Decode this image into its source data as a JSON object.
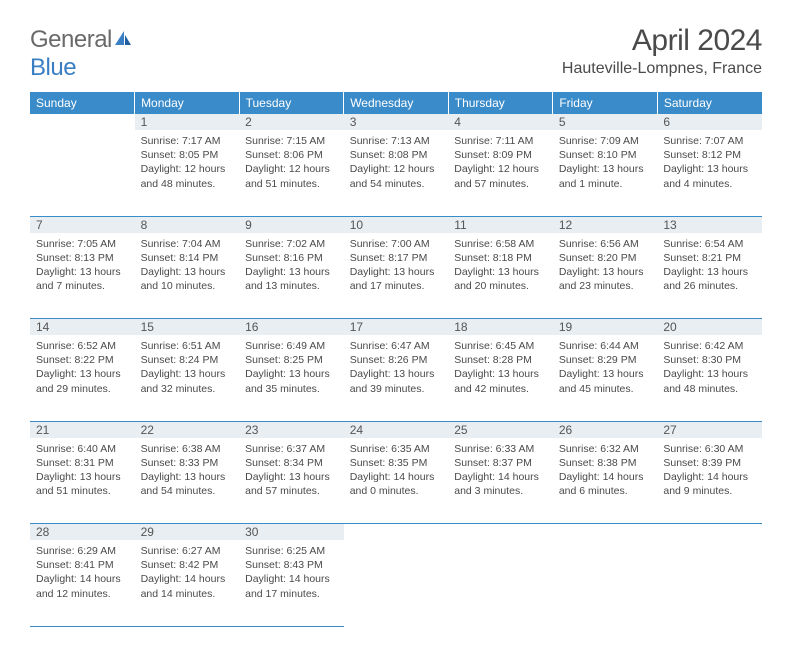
{
  "brand": {
    "word1": "General",
    "word2": "Blue"
  },
  "title": "April 2024",
  "location": "Hauteville-Lompnes, France",
  "day_headers": [
    "Sunday",
    "Monday",
    "Tuesday",
    "Wednesday",
    "Thursday",
    "Friday",
    "Saturday"
  ],
  "colors": {
    "header_bg": "#3a8bc9",
    "header_text": "#ffffff",
    "daynum_bg": "#e9eef2",
    "grid_line": "#3a8bc9",
    "body_text": "#4a4a4a",
    "logo_gray": "#6a6a6a",
    "logo_blue": "#3a7fc4"
  },
  "weeks": [
    {
      "days": [
        {
          "num": "",
          "sunrise": "",
          "sunset": "",
          "daylight": ""
        },
        {
          "num": "1",
          "sunrise": "Sunrise: 7:17 AM",
          "sunset": "Sunset: 8:05 PM",
          "daylight": "Daylight: 12 hours and 48 minutes."
        },
        {
          "num": "2",
          "sunrise": "Sunrise: 7:15 AM",
          "sunset": "Sunset: 8:06 PM",
          "daylight": "Daylight: 12 hours and 51 minutes."
        },
        {
          "num": "3",
          "sunrise": "Sunrise: 7:13 AM",
          "sunset": "Sunset: 8:08 PM",
          "daylight": "Daylight: 12 hours and 54 minutes."
        },
        {
          "num": "4",
          "sunrise": "Sunrise: 7:11 AM",
          "sunset": "Sunset: 8:09 PM",
          "daylight": "Daylight: 12 hours and 57 minutes."
        },
        {
          "num": "5",
          "sunrise": "Sunrise: 7:09 AM",
          "sunset": "Sunset: 8:10 PM",
          "daylight": "Daylight: 13 hours and 1 minute."
        },
        {
          "num": "6",
          "sunrise": "Sunrise: 7:07 AM",
          "sunset": "Sunset: 8:12 PM",
          "daylight": "Daylight: 13 hours and 4 minutes."
        }
      ]
    },
    {
      "days": [
        {
          "num": "7",
          "sunrise": "Sunrise: 7:05 AM",
          "sunset": "Sunset: 8:13 PM",
          "daylight": "Daylight: 13 hours and 7 minutes."
        },
        {
          "num": "8",
          "sunrise": "Sunrise: 7:04 AM",
          "sunset": "Sunset: 8:14 PM",
          "daylight": "Daylight: 13 hours and 10 minutes."
        },
        {
          "num": "9",
          "sunrise": "Sunrise: 7:02 AM",
          "sunset": "Sunset: 8:16 PM",
          "daylight": "Daylight: 13 hours and 13 minutes."
        },
        {
          "num": "10",
          "sunrise": "Sunrise: 7:00 AM",
          "sunset": "Sunset: 8:17 PM",
          "daylight": "Daylight: 13 hours and 17 minutes."
        },
        {
          "num": "11",
          "sunrise": "Sunrise: 6:58 AM",
          "sunset": "Sunset: 8:18 PM",
          "daylight": "Daylight: 13 hours and 20 minutes."
        },
        {
          "num": "12",
          "sunrise": "Sunrise: 6:56 AM",
          "sunset": "Sunset: 8:20 PM",
          "daylight": "Daylight: 13 hours and 23 minutes."
        },
        {
          "num": "13",
          "sunrise": "Sunrise: 6:54 AM",
          "sunset": "Sunset: 8:21 PM",
          "daylight": "Daylight: 13 hours and 26 minutes."
        }
      ]
    },
    {
      "days": [
        {
          "num": "14",
          "sunrise": "Sunrise: 6:52 AM",
          "sunset": "Sunset: 8:22 PM",
          "daylight": "Daylight: 13 hours and 29 minutes."
        },
        {
          "num": "15",
          "sunrise": "Sunrise: 6:51 AM",
          "sunset": "Sunset: 8:24 PM",
          "daylight": "Daylight: 13 hours and 32 minutes."
        },
        {
          "num": "16",
          "sunrise": "Sunrise: 6:49 AM",
          "sunset": "Sunset: 8:25 PM",
          "daylight": "Daylight: 13 hours and 35 minutes."
        },
        {
          "num": "17",
          "sunrise": "Sunrise: 6:47 AM",
          "sunset": "Sunset: 8:26 PM",
          "daylight": "Daylight: 13 hours and 39 minutes."
        },
        {
          "num": "18",
          "sunrise": "Sunrise: 6:45 AM",
          "sunset": "Sunset: 8:28 PM",
          "daylight": "Daylight: 13 hours and 42 minutes."
        },
        {
          "num": "19",
          "sunrise": "Sunrise: 6:44 AM",
          "sunset": "Sunset: 8:29 PM",
          "daylight": "Daylight: 13 hours and 45 minutes."
        },
        {
          "num": "20",
          "sunrise": "Sunrise: 6:42 AM",
          "sunset": "Sunset: 8:30 PM",
          "daylight": "Daylight: 13 hours and 48 minutes."
        }
      ]
    },
    {
      "days": [
        {
          "num": "21",
          "sunrise": "Sunrise: 6:40 AM",
          "sunset": "Sunset: 8:31 PM",
          "daylight": "Daylight: 13 hours and 51 minutes."
        },
        {
          "num": "22",
          "sunrise": "Sunrise: 6:38 AM",
          "sunset": "Sunset: 8:33 PM",
          "daylight": "Daylight: 13 hours and 54 minutes."
        },
        {
          "num": "23",
          "sunrise": "Sunrise: 6:37 AM",
          "sunset": "Sunset: 8:34 PM",
          "daylight": "Daylight: 13 hours and 57 minutes."
        },
        {
          "num": "24",
          "sunrise": "Sunrise: 6:35 AM",
          "sunset": "Sunset: 8:35 PM",
          "daylight": "Daylight: 14 hours and 0 minutes."
        },
        {
          "num": "25",
          "sunrise": "Sunrise: 6:33 AM",
          "sunset": "Sunset: 8:37 PM",
          "daylight": "Daylight: 14 hours and 3 minutes."
        },
        {
          "num": "26",
          "sunrise": "Sunrise: 6:32 AM",
          "sunset": "Sunset: 8:38 PM",
          "daylight": "Daylight: 14 hours and 6 minutes."
        },
        {
          "num": "27",
          "sunrise": "Sunrise: 6:30 AM",
          "sunset": "Sunset: 8:39 PM",
          "daylight": "Daylight: 14 hours and 9 minutes."
        }
      ]
    },
    {
      "days": [
        {
          "num": "28",
          "sunrise": "Sunrise: 6:29 AM",
          "sunset": "Sunset: 8:41 PM",
          "daylight": "Daylight: 14 hours and 12 minutes."
        },
        {
          "num": "29",
          "sunrise": "Sunrise: 6:27 AM",
          "sunset": "Sunset: 8:42 PM",
          "daylight": "Daylight: 14 hours and 14 minutes."
        },
        {
          "num": "30",
          "sunrise": "Sunrise: 6:25 AM",
          "sunset": "Sunset: 8:43 PM",
          "daylight": "Daylight: 14 hours and 17 minutes."
        },
        {
          "num": "",
          "sunrise": "",
          "sunset": "",
          "daylight": ""
        },
        {
          "num": "",
          "sunrise": "",
          "sunset": "",
          "daylight": ""
        },
        {
          "num": "",
          "sunrise": "",
          "sunset": "",
          "daylight": ""
        },
        {
          "num": "",
          "sunrise": "",
          "sunset": "",
          "daylight": ""
        }
      ]
    }
  ]
}
